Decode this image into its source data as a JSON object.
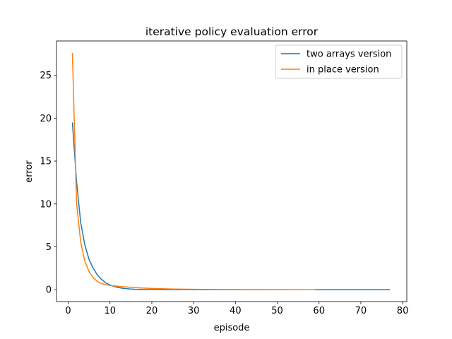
{
  "chart_data": {
    "type": "line",
    "title": "iterative policy evaluation error",
    "xlabel": "episode",
    "ylabel": "error",
    "xlim": [
      -2.8,
      81.0
    ],
    "ylim": [
      -1.38,
      29.0
    ],
    "xticks": [
      0,
      10,
      20,
      30,
      40,
      50,
      60,
      70,
      80
    ],
    "yticks": [
      0,
      5,
      10,
      15,
      20,
      25
    ],
    "grid": false,
    "legend_position": "top-right",
    "series": [
      {
        "name": "two arrays version",
        "color": "#1f77b4",
        "points": [
          [
            1,
            19.5
          ],
          [
            2,
            12.6
          ],
          [
            3,
            7.8
          ],
          [
            4,
            5.2
          ],
          [
            5,
            3.5
          ],
          [
            6,
            2.5
          ],
          [
            7,
            1.7
          ],
          [
            8,
            1.2
          ],
          [
            9,
            0.8
          ],
          [
            10,
            0.55
          ],
          [
            11,
            0.38
          ],
          [
            12,
            0.26
          ],
          [
            13,
            0.18
          ],
          [
            14,
            0.12
          ],
          [
            15,
            0.08
          ],
          [
            16,
            0.05
          ],
          [
            18,
            0.03
          ],
          [
            20,
            0.02
          ],
          [
            25,
            0.01
          ],
          [
            30,
            0.005
          ],
          [
            40,
            0.002
          ],
          [
            50,
            0.001
          ],
          [
            60,
            0.0005
          ],
          [
            70,
            0.0002
          ],
          [
            77,
            0.0001
          ]
        ]
      },
      {
        "name": "in place version",
        "color": "#ff7f0e",
        "points": [
          [
            1,
            27.6
          ],
          [
            2,
            10.1
          ],
          [
            3,
            5.5
          ],
          [
            4,
            3.3
          ],
          [
            5,
            2.1
          ],
          [
            6,
            1.4
          ],
          [
            7,
            0.95
          ],
          [
            8,
            0.72
          ],
          [
            9,
            0.6
          ],
          [
            10,
            0.5
          ],
          [
            11,
            0.45
          ],
          [
            12,
            0.4
          ],
          [
            13,
            0.36
          ],
          [
            14,
            0.32
          ],
          [
            15,
            0.28
          ],
          [
            17,
            0.22
          ],
          [
            20,
            0.15
          ],
          [
            25,
            0.08
          ],
          [
            30,
            0.05
          ],
          [
            35,
            0.03
          ],
          [
            40,
            0.02
          ],
          [
            50,
            0.01
          ],
          [
            59,
            0.005
          ]
        ]
      }
    ]
  }
}
